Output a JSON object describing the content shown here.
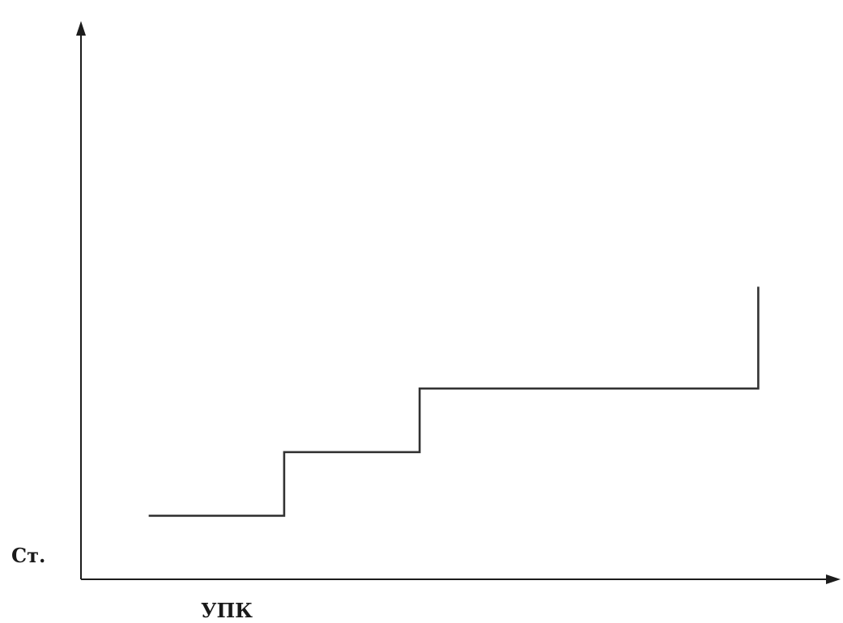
{
  "chart_data": {
    "type": "line",
    "step": true,
    "title": "",
    "xlabel": "УПК",
    "ylabel": "Ст.",
    "grid": false,
    "legend": "none",
    "ticks": false,
    "series": [
      {
        "x": [
          1,
          3,
          3,
          5,
          5,
          10,
          10
        ],
        "y": [
          1,
          1,
          2,
          2,
          3,
          3,
          4.6
        ]
      }
    ],
    "xlim": [
      0,
      11
    ],
    "ylim": [
      0,
      8.6
    ],
    "colors": {
      "line": "#333333",
      "axis": "#1c1c1c"
    }
  }
}
